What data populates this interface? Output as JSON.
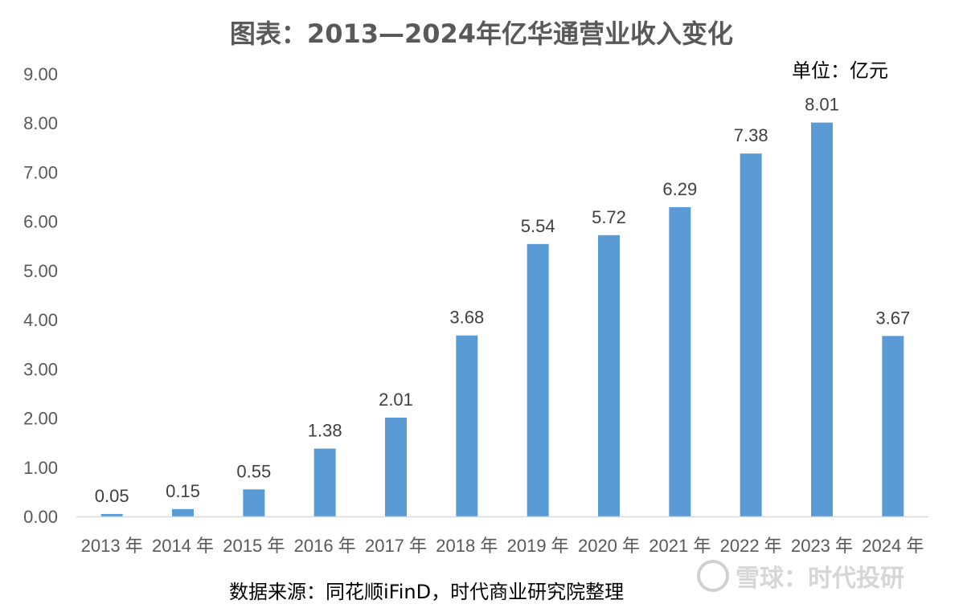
{
  "chart_data": {
    "type": "bar",
    "title": "图表：2013—2024年亿华通营业收入变化",
    "unit_label": "单位：亿元",
    "categories": [
      "2013 年",
      "2014 年",
      "2015 年",
      "2016 年",
      "2017 年",
      "2018 年",
      "2019 年",
      "2020 年",
      "2021 年",
      "2022 年",
      "2023 年",
      "2024 年"
    ],
    "values": [
      0.05,
      0.15,
      0.55,
      1.38,
      2.01,
      3.68,
      5.54,
      5.72,
      6.29,
      7.38,
      8.01,
      3.67
    ],
    "data_labels": [
      "0.05",
      "0.15",
      "0.55",
      "1.38",
      "2.01",
      "3.68",
      "5.54",
      "5.72",
      "6.29",
      "7.38",
      "8.01",
      "3.67"
    ],
    "y_ticks": [
      "0.00",
      "1.00",
      "2.00",
      "3.00",
      "4.00",
      "5.00",
      "6.00",
      "7.00",
      "8.00",
      "9.00"
    ],
    "ylim": [
      0,
      9
    ],
    "xlabel": "",
    "ylabel": "",
    "grid": false,
    "legend": "none",
    "bar_color": "#5B9BD5",
    "axis_color": "#D9D9D9"
  },
  "footer": {
    "source": "数据来源：同花顺iFinD，时代商业研究院整理",
    "watermark": "雪球：时代投研"
  }
}
